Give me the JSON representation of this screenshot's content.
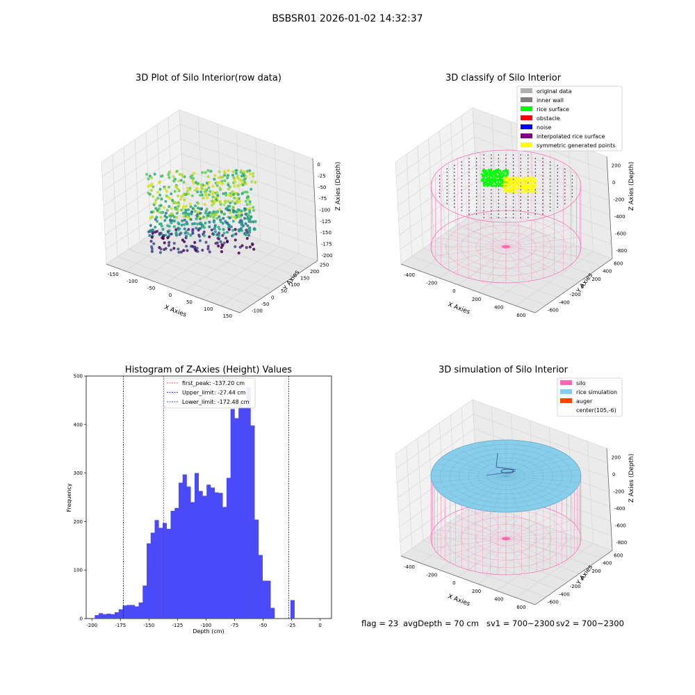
{
  "figure_title": "BSBSR01 2026-01-02 14:32:37",
  "footer": {
    "flag": "flag = 23",
    "avg_depth": "avgDepth = 70 cm",
    "sv1": "sv1 = 700~2300",
    "sv2": "sv2 = 700~2300"
  },
  "colors": {
    "hist_bar": "#4a4af8",
    "peak_line": "#ff0000",
    "limit_line": "#0000cc",
    "silo_wire": "#ff69b4",
    "rice_surface": "#00ff00",
    "symmetric": "#ffff00",
    "rice_sim": "#87ceeb",
    "auger": "#ff4500"
  },
  "chart_data": [
    {
      "type": "scatter3d",
      "title": "3D Plot of Silo Interior(row data)",
      "xlabel": "X Axies",
      "ylabel": "Y Axies",
      "zlabel": "Z Axies (Depth)",
      "xticks": [
        "-150",
        "-100",
        "-50",
        "0",
        "50",
        "100",
        "150"
      ],
      "yticks": [
        "-100",
        "-50",
        "0",
        "50",
        "100",
        "150",
        "200",
        "250"
      ],
      "zticks": [
        "0",
        "-25",
        "-50",
        "-75",
        "-100",
        "-125",
        "-150",
        "-175",
        "-200"
      ],
      "colormap": "viridis"
    },
    {
      "type": "scatter3d",
      "title": "3D classify of Silo Interior",
      "xlabel": "X Axies",
      "ylabel": "Y Axies",
      "zlabel": "Z Axies (Depth)",
      "xticks": [
        "-400",
        "-200",
        "0",
        "200",
        "400",
        "600"
      ],
      "yticks": [
        "-600",
        "-400",
        "-200",
        "0",
        "200",
        "400",
        "600"
      ],
      "zticks": [
        "200",
        "0",
        "-200",
        "-400",
        "-600",
        "-800"
      ],
      "legend": [
        {
          "label": "original data",
          "color": "#b0b0b0"
        },
        {
          "label": "inner wall",
          "color": "#808080"
        },
        {
          "label": "rice surface",
          "color": "#00ff00"
        },
        {
          "label": "obstacle",
          "color": "#ff0000"
        },
        {
          "label": "noise",
          "color": "#0000ff"
        },
        {
          "label": "interpolated rice surface",
          "color": "#800080"
        },
        {
          "label": "symmetric generated points",
          "color": "#ffff00"
        }
      ],
      "legend_position": "top-right"
    },
    {
      "type": "bar",
      "title": "Histogram of Z-Axies (Height) Values",
      "xlabel": "Depth (cm)",
      "ylabel": "Frequency",
      "xlim": [
        -205,
        10
      ],
      "ylim": [
        0,
        500
      ],
      "xticks": [
        -200,
        -175,
        -150,
        -125,
        -100,
        -75,
        -50,
        -25,
        0
      ],
      "yticks": [
        0,
        100,
        200,
        300,
        400,
        500
      ],
      "bin_width": 3.5,
      "bin_start": -197.5,
      "values": [
        7,
        11,
        9,
        10,
        9,
        13,
        19,
        27,
        28,
        28,
        25,
        33,
        68,
        155,
        177,
        203,
        187,
        197,
        185,
        222,
        228,
        280,
        297,
        272,
        240,
        300,
        263,
        253,
        276,
        270,
        260,
        259,
        230,
        290,
        432,
        413,
        440,
        437,
        477,
        398,
        204,
        131,
        78,
        78,
        22,
        0,
        0,
        0,
        0,
        38
      ],
      "lines": [
        {
          "label": "first_peak: -137.20 cm",
          "x": -137.2,
          "color": "#ff0000"
        },
        {
          "label": "Upper_limit: -27.44 cm",
          "x": -27.44,
          "color": "#0000cc"
        },
        {
          "label": "Lower_limit: -172.48 cm",
          "x": -172.48,
          "color": "#0000cc"
        }
      ],
      "legend_position": "top-center"
    },
    {
      "type": "surface3d",
      "title": "3D simulation of Silo Interior",
      "xlabel": "X Axies",
      "ylabel": "Y Axies",
      "zlabel": "Z Axies (Depth)",
      "xticks": [
        "-400",
        "-200",
        "0",
        "200",
        "400",
        "600"
      ],
      "yticks": [
        "-600",
        "-400",
        "-200",
        "0",
        "200",
        "400",
        "600"
      ],
      "zticks": [
        "200",
        "0",
        "-200",
        "-400",
        "-600",
        "-800"
      ],
      "legend": [
        {
          "label": "silo",
          "color": "#ff69b4"
        },
        {
          "label": "rice simulation",
          "color": "#87ceeb"
        },
        {
          "label": "auger",
          "color": "#ff4500"
        },
        {
          "label": "center(105,-6)",
          "color": ""
        }
      ],
      "legend_position": "top-right"
    }
  ]
}
